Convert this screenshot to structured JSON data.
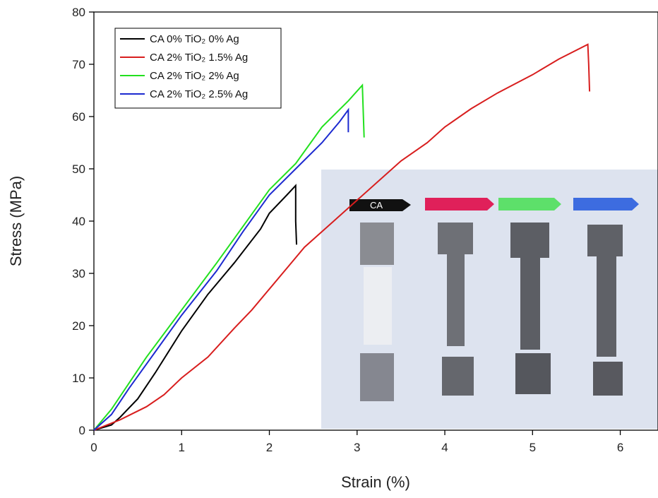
{
  "chart_data": {
    "type": "line",
    "x_label": "Strain (%)",
    "y_label": "Stress (MPa)",
    "xlim": [
      0,
      6.43
    ],
    "ylim": [
      0,
      80
    ],
    "xticks": [
      0,
      1,
      2,
      3,
      4,
      5,
      6
    ],
    "yticks": [
      0,
      10,
      20,
      30,
      40,
      50,
      60,
      70,
      80
    ],
    "legend_position": "upper left",
    "inset_label": "CA",
    "series": [
      {
        "name": "CA 0% TiO₂  0% Ag",
        "color": "#000000",
        "x": [
          0,
          0.2,
          0.3,
          0.5,
          0.7,
          1,
          1.3,
          1.6,
          1.9,
          2.0,
          2.2,
          2.3,
          2.3,
          2.31
        ],
        "values": [
          0,
          1,
          2.5,
          6,
          11,
          19,
          26,
          32,
          38.5,
          41.5,
          45,
          46.8,
          40,
          35.5
        ]
      },
      {
        "name": "CA 2% TiO₂  1.5% Ag",
        "color": "#d81e1e",
        "x": [
          0,
          0.3,
          0.6,
          0.8,
          1,
          1.3,
          1.6,
          1.8,
          2,
          2.2,
          2.4,
          2.7,
          3,
          3.3,
          3.5,
          3.8,
          4,
          4.3,
          4.6,
          5,
          5.3,
          5.63,
          5.64,
          5.65
        ],
        "values": [
          0,
          2,
          4.5,
          6.8,
          10,
          14,
          19.5,
          23,
          27,
          31,
          35,
          39.5,
          44,
          48.5,
          51.5,
          55,
          58,
          61.5,
          64.5,
          68,
          71,
          73.8,
          70,
          64.8
        ]
      },
      {
        "name": "CA 2% TiO₂  2% Ag",
        "color": "#22e01e",
        "x": [
          0,
          0.2,
          0.4,
          0.6,
          1,
          1.4,
          1.7,
          2,
          2.3,
          2.6,
          2.9,
          3.06,
          3.07,
          3.08
        ],
        "values": [
          0,
          4,
          9,
          14,
          23,
          32,
          39,
          46,
          51,
          58,
          63,
          66,
          61,
          56
        ]
      },
      {
        "name": "CA 2% TiO₂  2.5% Ag",
        "color": "#1c2ad0",
        "x": [
          0,
          0.2,
          0.4,
          0.7,
          1,
          1.4,
          1.7,
          2,
          2.3,
          2.6,
          2.8,
          2.9,
          2.9
        ],
        "values": [
          0,
          3,
          8,
          15,
          22,
          30.5,
          38,
          45,
          50,
          55,
          59,
          61.3,
          57
        ]
      }
    ]
  }
}
